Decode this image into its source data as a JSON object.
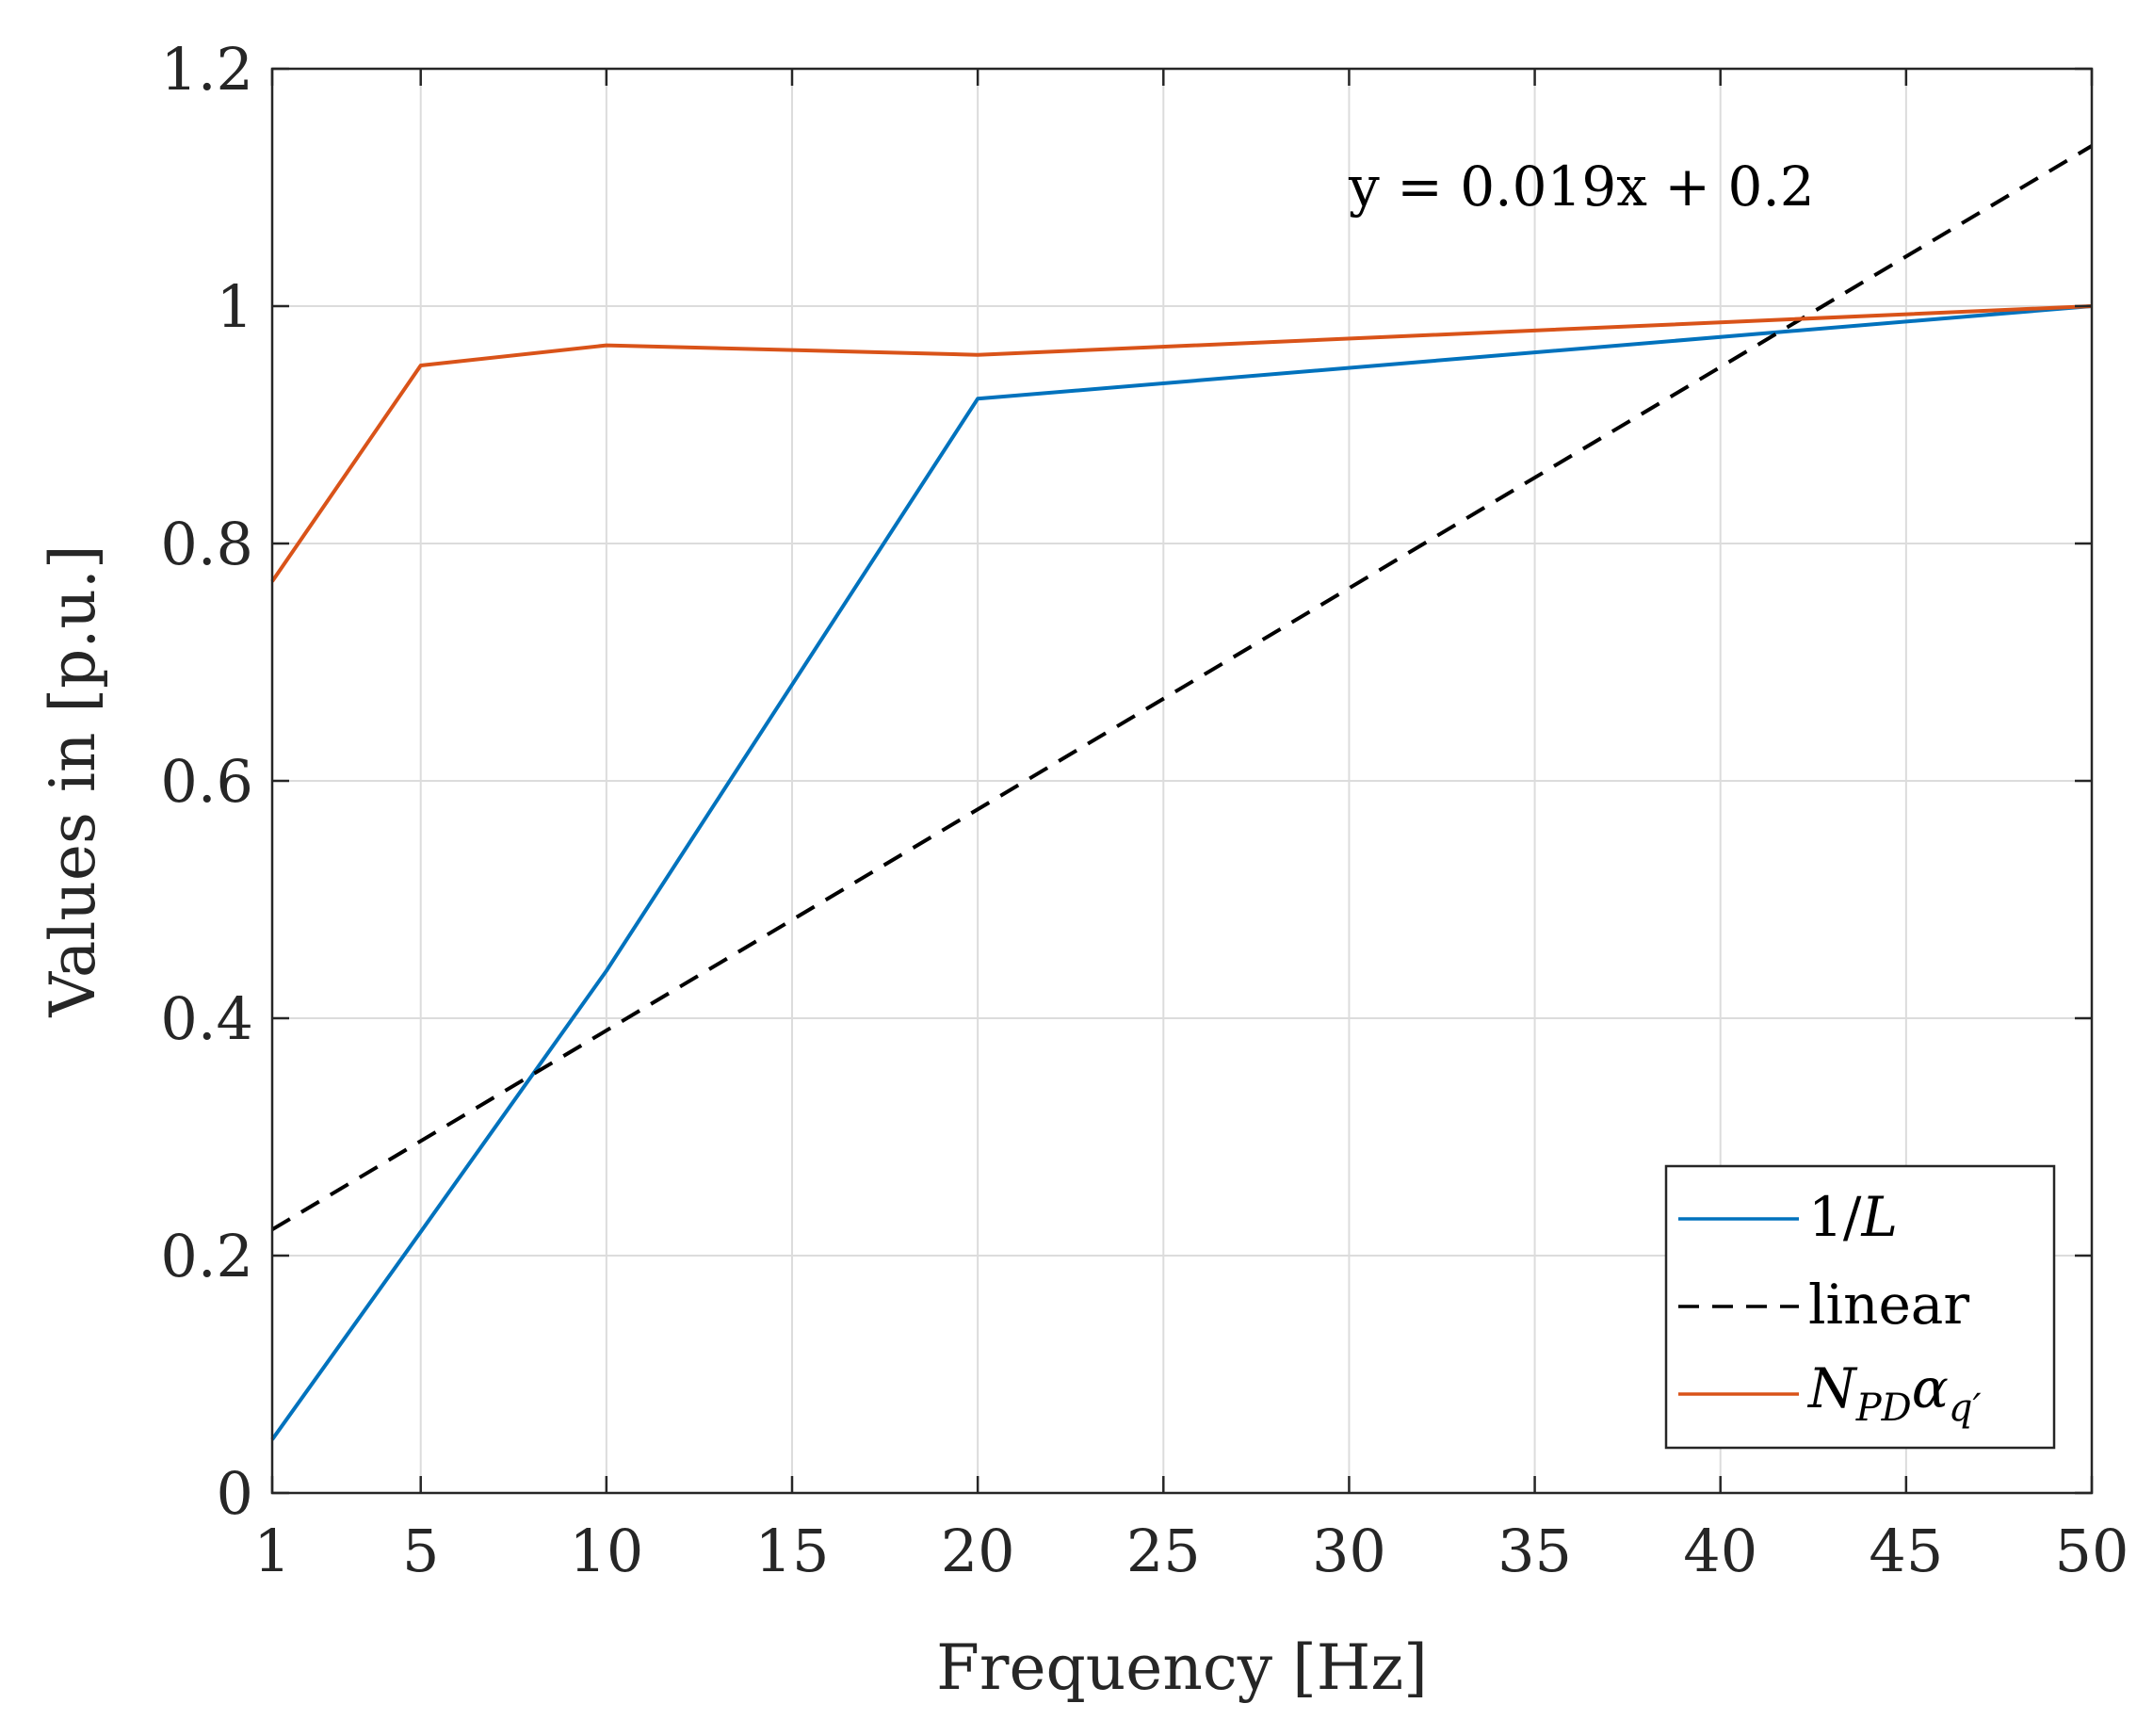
{
  "chart_data": {
    "type": "line",
    "title": "",
    "xlabel": "Frequency [Hz]",
    "ylabel": "Values in [p.u.]",
    "xlim": [
      1,
      50
    ],
    "ylim": [
      0,
      1.2
    ],
    "xticks": [
      1,
      5,
      10,
      15,
      20,
      25,
      30,
      35,
      40,
      45,
      50
    ],
    "xtick_labels": [
      "1",
      "5",
      "10",
      "15",
      "20",
      "25",
      "30",
      "35",
      "40",
      "45",
      "50"
    ],
    "yticks": [
      0,
      0.2,
      0.4,
      0.6,
      0.8,
      1,
      1.2
    ],
    "ytick_labels": [
      "0",
      "0.2",
      "0.4",
      "0.6",
      "0.8",
      "1",
      "1.2"
    ],
    "grid": true,
    "legend_position": "bottom-right",
    "annotation": "y = 0.019x + 0.2",
    "series": [
      {
        "name": "1/L",
        "legend_main": "1/",
        "legend_italic": "L",
        "color": "#0072BD",
        "dash": "solid",
        "x": [
          1,
          5,
          10,
          20,
          50
        ],
        "y": [
          0.045,
          0.22,
          0.44,
          0.922,
          1.0
        ]
      },
      {
        "name": "linear",
        "legend_main": "linear",
        "color": "#000000",
        "dash": "dashed",
        "x": [
          1,
          50
        ],
        "y": [
          0.222,
          1.135
        ]
      },
      {
        "name": "N_PD α_q'",
        "legend_main": "N",
        "legend_sub1": "PD",
        "legend_alpha": "α",
        "legend_sub2": "q′",
        "color": "#D95319",
        "dash": "solid",
        "x": [
          1,
          5,
          10,
          20,
          50
        ],
        "y": [
          0.768,
          0.95,
          0.967,
          0.959,
          1.0
        ]
      }
    ]
  }
}
